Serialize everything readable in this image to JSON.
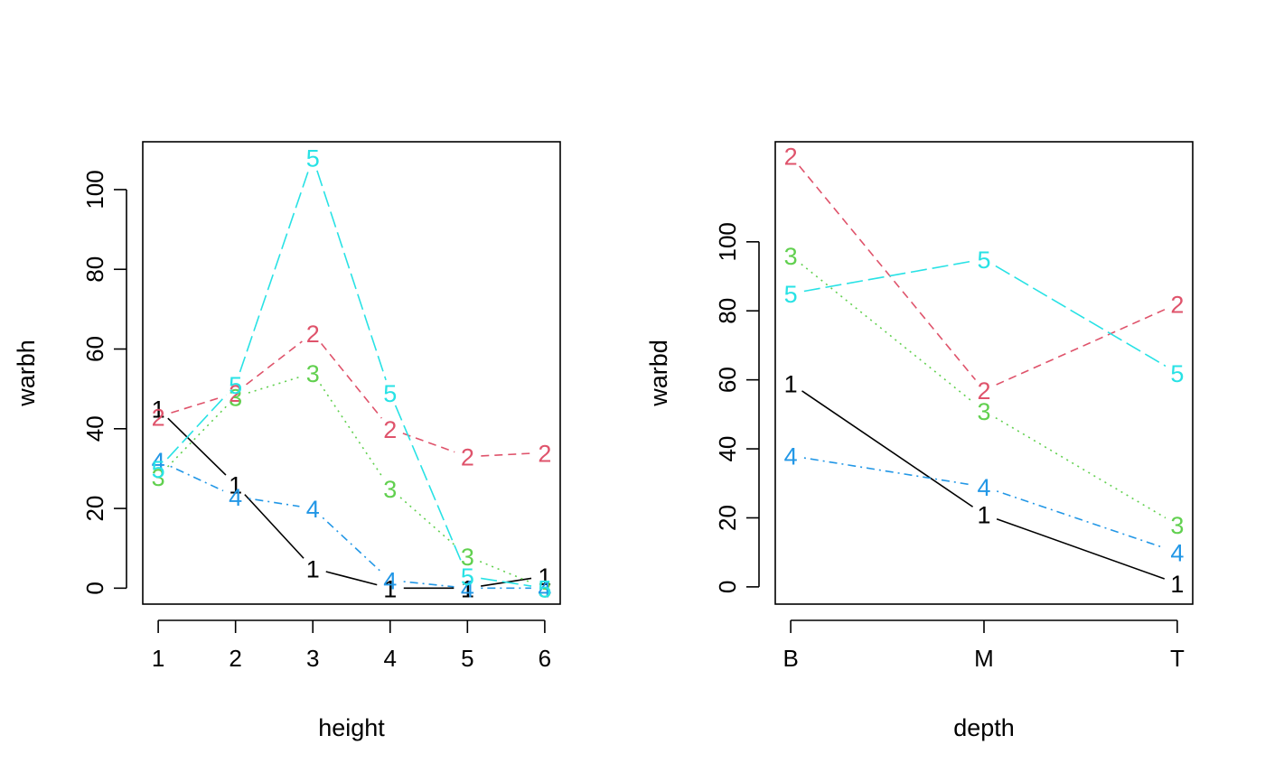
{
  "chart_data": [
    {
      "type": "line",
      "xlabel": "height",
      "ylabel": "warbh",
      "x": [
        1,
        2,
        3,
        4,
        5,
        6
      ],
      "xticks": [
        "1",
        "2",
        "3",
        "4",
        "5",
        "6"
      ],
      "yticks": [
        0,
        20,
        40,
        60,
        80,
        100
      ],
      "xlim": [
        0.8,
        6.2
      ],
      "ylim": [
        -4,
        112
      ],
      "series": [
        {
          "label": "1",
          "color": "#000000",
          "dash": "solid",
          "values": [
            45,
            26,
            5,
            0,
            0,
            3
          ]
        },
        {
          "label": "2",
          "color": "#DF536B",
          "dash": "dashed",
          "values": [
            43,
            49,
            64,
            40,
            33,
            34
          ]
        },
        {
          "label": "3",
          "color": "#61D04F",
          "dash": "dotted",
          "values": [
            28,
            48,
            54,
            25,
            8,
            0
          ]
        },
        {
          "label": "4",
          "color": "#2297E6",
          "dash": "dotdash",
          "values": [
            32,
            23,
            20,
            2,
            0,
            0
          ]
        },
        {
          "label": "5",
          "color": "#28E2E5",
          "dash": "longdash",
          "values": [
            30,
            51,
            108,
            49,
            3,
            0
          ]
        }
      ]
    },
    {
      "type": "line",
      "xlabel": "depth",
      "ylabel": "warbd",
      "x": [
        "B",
        "M",
        "T"
      ],
      "xticks": [
        "B",
        "M",
        "T"
      ],
      "yticks": [
        0,
        20,
        40,
        60,
        80,
        100
      ],
      "xlim": [
        0.92,
        3.08
      ],
      "ylim": [
        -5,
        129
      ],
      "series": [
        {
          "label": "1",
          "color": "#000000",
          "dash": "solid",
          "values": [
            59,
            21,
            1
          ]
        },
        {
          "label": "2",
          "color": "#DF536B",
          "dash": "dashed",
          "values": [
            125,
            57,
            82
          ]
        },
        {
          "label": "3",
          "color": "#61D04F",
          "dash": "dotted",
          "values": [
            96,
            51,
            18
          ]
        },
        {
          "label": "4",
          "color": "#2297E6",
          "dash": "dotdash",
          "values": [
            38,
            29,
            10
          ]
        },
        {
          "label": "5",
          "color": "#28E2E5",
          "dash": "longdash",
          "values": [
            85,
            95,
            62
          ]
        }
      ]
    }
  ]
}
